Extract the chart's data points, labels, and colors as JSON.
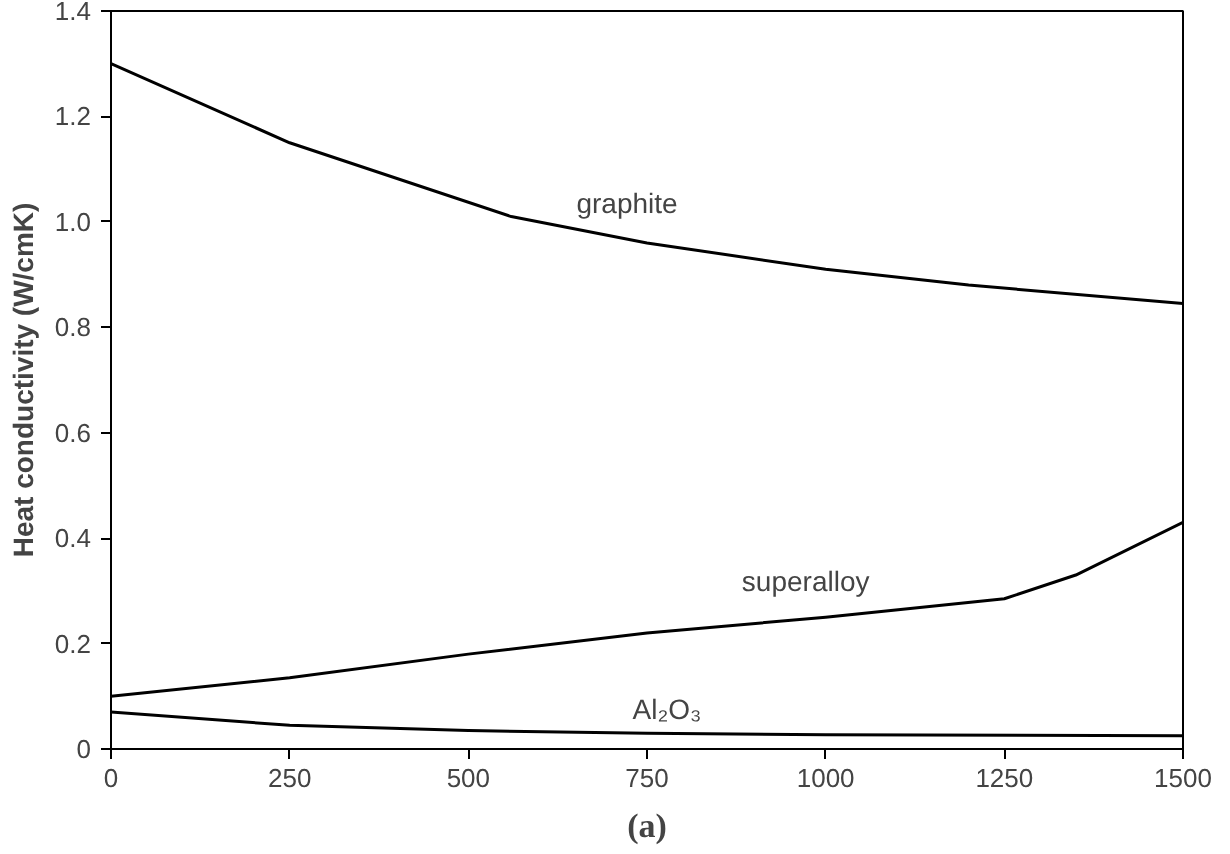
{
  "chart_data": {
    "type": "line",
    "ylabel": "Heat conductivity (W/cmK)",
    "annotations": [
      "(a)"
    ],
    "xlim": [
      0,
      1500
    ],
    "ylim": [
      0,
      1.4
    ],
    "xticks": [
      0,
      250,
      500,
      750,
      1000,
      1250,
      1500
    ],
    "yticks": [
      0,
      0.2,
      0.4,
      0.6,
      0.8,
      {
        "value": 1,
        "label": "1.0"
      },
      1.2,
      1.4
    ],
    "grid": false,
    "marker": "none",
    "line_style": "solid",
    "series": [
      {
        "name": "graphite",
        "color": "#000000",
        "x": [
          0,
          250,
          560,
          750,
          1000,
          1200,
          1500
        ],
        "values": [
          1.3,
          1.15,
          1.01,
          0.96,
          0.91,
          0.88,
          0.845
        ]
      },
      {
        "name": "superalloy",
        "color": "#000000",
        "x": [
          0,
          250,
          500,
          750,
          1000,
          1250,
          1350,
          1500
        ],
        "values": [
          0.1,
          0.135,
          0.18,
          0.22,
          0.25,
          0.285,
          0.33,
          0.43
        ]
      },
      {
        "name": "Al₂O₃",
        "color": "#000000",
        "x": [
          0,
          250,
          500,
          750,
          1000,
          1500
        ],
        "values": [
          0.07,
          0.045,
          0.035,
          0.03,
          0.027,
          0.025
        ]
      }
    ]
  }
}
